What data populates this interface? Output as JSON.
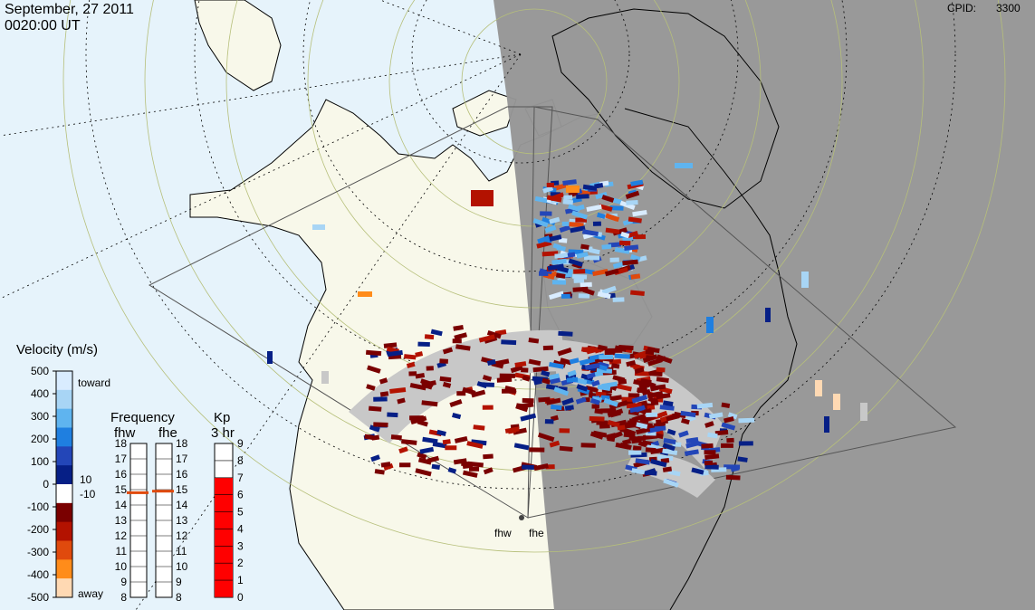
{
  "header": {
    "date": "September, 27 2011",
    "time": "0020:00 UT",
    "cpid_label": "CPID:",
    "cpid_value": "3300"
  },
  "velocity_scale": {
    "title": "Velocity (m/s)",
    "ticks": [
      "500",
      "400",
      "300",
      "200",
      "100",
      "0",
      "-100",
      "-200",
      "-300",
      "-400",
      "-500"
    ],
    "toward_label": "toward",
    "away_label": "away",
    "threshold_pos": "10",
    "threshold_neg": "-10",
    "colors": [
      "#d9ecff",
      "#a8d5f5",
      "#5fb4ef",
      "#1f7fe0",
      "#2346b8",
      "#061f86",
      "#ffffff",
      "#7a0000",
      "#b31200",
      "#e04a0d",
      "#ff8c1a",
      "#ffd9b3"
    ]
  },
  "frequency_panel": {
    "title": "Frequency",
    "radars": [
      "fhw",
      "fhe"
    ],
    "ticks": [
      "18",
      "17",
      "16",
      "15",
      "14",
      "13",
      "12",
      "11",
      "10",
      "9",
      "8"
    ],
    "fhw_freq_mhz": 14.8,
    "fhe_freq_mhz": 14.9,
    "marker_color": "#e04a0d"
  },
  "kp_panel": {
    "title": "Kp",
    "subtitle": "3 hr",
    "ticks": [
      "9",
      "8",
      "7",
      "6",
      "5",
      "4",
      "3",
      "2",
      "1",
      "0"
    ],
    "value": 7,
    "fill_color": "#ff0000"
  },
  "map": {
    "ocean_color": "#e6f3fb",
    "land_color": "#f8f8ea",
    "night_color": "#969696",
    "ground_scatter_color": "#c8c8c8",
    "site_labels": [
      "fhw",
      "fhe"
    ]
  }
}
